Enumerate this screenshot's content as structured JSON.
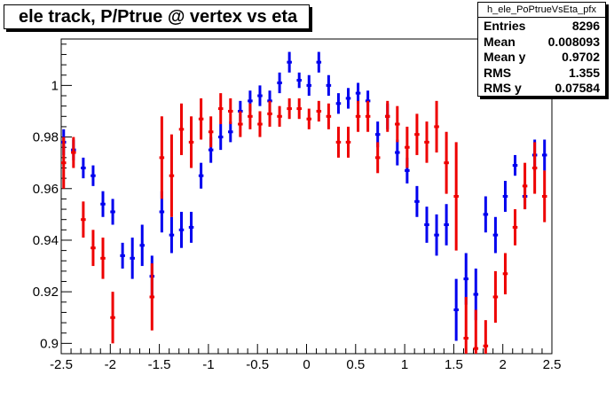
{
  "title": "ele track, P/Ptrue @ vertex vs eta",
  "stats": {
    "name": "h_ele_PoPtrueVsEta_pfx",
    "rows": [
      {
        "label": "Entries",
        "value": "8296"
      },
      {
        "label": "Mean",
        "value": "0.008093"
      },
      {
        "label": "Mean y",
        "value": "0.9702"
      },
      {
        "label": "RMS",
        "value": "1.355"
      },
      {
        "label": "RMS y",
        "value": "0.07584"
      }
    ]
  },
  "chart_data": {
    "type": "scatter",
    "title": "ele track, P/Ptrue @ vertex vs eta",
    "xlabel": "",
    "ylabel": "",
    "xlim": [
      -2.5,
      2.5
    ],
    "ylim": [
      0.896,
      1.018
    ],
    "x_ticks": [
      -2.5,
      -2,
      -1.5,
      -1,
      -0.5,
      0,
      0.5,
      1,
      1.5,
      2,
      2.5
    ],
    "x_tick_labels": [
      "-2.5",
      "-2",
      "-1.5",
      "-1",
      "-0.5",
      "0",
      "0.5",
      "1",
      "1.5",
      "2",
      "2.5"
    ],
    "y_ticks": [
      0.9,
      0.92,
      0.94,
      0.96,
      0.98,
      1
    ],
    "y_tick_labels": [
      "0.9",
      "0.92",
      "0.94",
      "0.96",
      "0.98",
      "1"
    ],
    "bin_half_width": 0.025,
    "series": [
      {
        "color": "#0000ee",
        "x": [
          -2.475,
          -2.375,
          -2.275,
          -2.175,
          -2.075,
          -1.975,
          -1.875,
          -1.775,
          -1.675,
          -1.575,
          -1.475,
          -1.375,
          -1.275,
          -1.175,
          -1.075,
          -0.975,
          -0.875,
          -0.775,
          -0.675,
          -0.575,
          -0.475,
          -0.375,
          -0.275,
          -0.175,
          -0.075,
          0.025,
          0.125,
          0.225,
          0.325,
          0.425,
          0.525,
          0.625,
          0.725,
          0.825,
          0.925,
          1.025,
          1.125,
          1.225,
          1.325,
          1.425,
          1.525,
          1.625,
          1.725,
          1.825,
          1.925,
          2.025,
          2.125,
          2.225,
          2.325,
          2.425
        ],
        "y": [
          0.978,
          0.975,
          0.968,
          0.965,
          0.954,
          0.951,
          0.934,
          0.933,
          0.938,
          0.926,
          0.951,
          0.942,
          0.944,
          0.945,
          0.965,
          0.975,
          0.98,
          0.982,
          0.99,
          0.994,
          0.996,
          0.994,
          1.001,
          1.009,
          1.002,
          1.0,
          1.009,
          1.0,
          0.993,
          0.995,
          0.997,
          0.994,
          0.981,
          0.988,
          0.974,
          0.967,
          0.955,
          0.946,
          0.942,
          0.946,
          0.913,
          0.925,
          0.919,
          0.95,
          0.942,
          0.957,
          0.969,
          0.957,
          0.973,
          0.973
        ],
        "err": [
          0.005,
          0.004,
          0.004,
          0.004,
          0.005,
          0.005,
          0.005,
          0.008,
          0.008,
          0.008,
          0.008,
          0.007,
          0.007,
          0.006,
          0.005,
          0.005,
          0.005,
          0.004,
          0.004,
          0.004,
          0.004,
          0.004,
          0.004,
          0.004,
          0.003,
          0.004,
          0.004,
          0.004,
          0.004,
          0.004,
          0.004,
          0.004,
          0.005,
          0.005,
          0.005,
          0.005,
          0.006,
          0.007,
          0.008,
          0.008,
          0.012,
          0.01,
          0.01,
          0.007,
          0.007,
          0.006,
          0.004,
          0.005,
          0.006,
          0.006
        ]
      },
      {
        "color": "#ee0000",
        "x": [
          -2.475,
          -2.375,
          -2.275,
          -2.175,
          -2.075,
          -1.975,
          -1.575,
          -1.475,
          -1.375,
          -1.275,
          -1.175,
          -1.075,
          -0.975,
          -0.875,
          -0.775,
          -0.675,
          -0.575,
          -0.475,
          -0.375,
          -0.275,
          -0.175,
          -0.075,
          0.025,
          0.125,
          0.225,
          0.325,
          0.425,
          0.525,
          0.625,
          0.725,
          0.825,
          0.925,
          1.025,
          1.125,
          1.225,
          1.325,
          1.425,
          1.525,
          1.625,
          1.725,
          1.825,
          1.925,
          2.025,
          2.125,
          2.225,
          2.325,
          2.425
        ],
        "y": [
          0.97,
          0.974,
          0.948,
          0.937,
          0.933,
          0.91,
          0.918,
          0.972,
          0.965,
          0.983,
          0.978,
          0.987,
          0.982,
          0.991,
          0.99,
          0.985,
          0.988,
          0.985,
          0.989,
          0.988,
          0.991,
          0.991,
          0.987,
          0.99,
          0.988,
          0.978,
          0.978,
          0.988,
          0.988,
          0.972,
          0.988,
          0.985,
          0.976,
          0.981,
          0.978,
          0.984,
          0.97,
          0.957,
          0.902,
          0.898,
          0.899,
          0.918,
          0.927,
          0.945,
          0.961,
          0.968,
          0.957
        ],
        "err": [
          0.01,
          0.006,
          0.007,
          0.007,
          0.008,
          0.01,
          0.013,
          0.016,
          0.016,
          0.01,
          0.01,
          0.008,
          0.006,
          0.006,
          0.005,
          0.005,
          0.005,
          0.005,
          0.005,
          0.004,
          0.004,
          0.004,
          0.004,
          0.004,
          0.005,
          0.006,
          0.006,
          0.006,
          0.006,
          0.006,
          0.006,
          0.007,
          0.008,
          0.008,
          0.008,
          0.01,
          0.012,
          0.021,
          0.016,
          0.015,
          0.01,
          0.01,
          0.008,
          0.007,
          0.009,
          0.01,
          0.01
        ]
      }
    ]
  }
}
